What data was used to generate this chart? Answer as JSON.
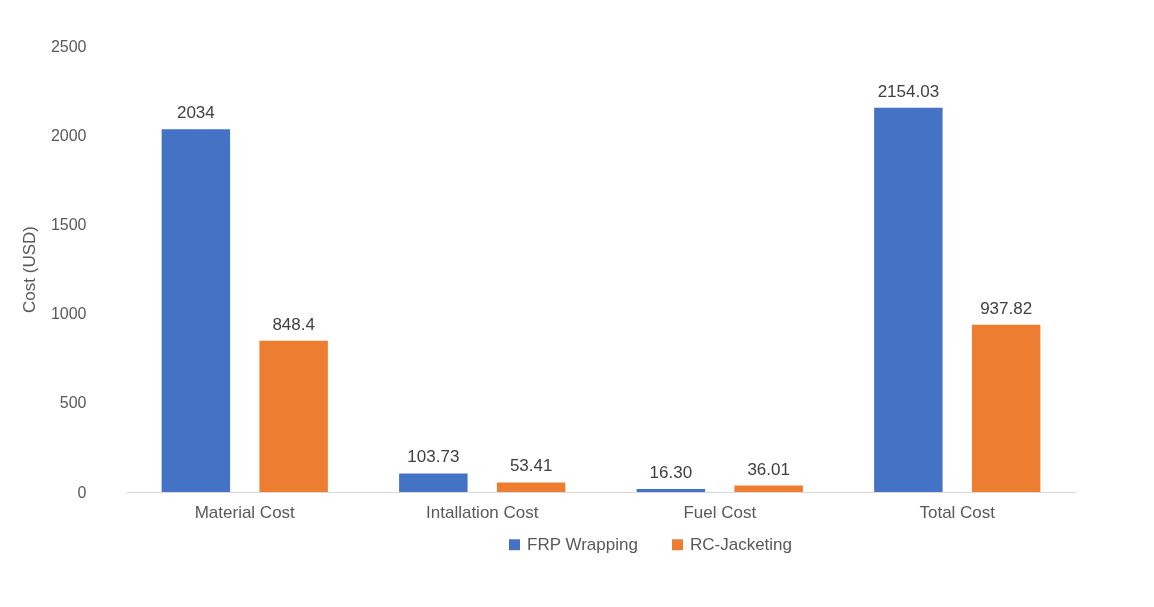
{
  "chart_data": {
    "type": "bar",
    "ylabel": "Cost (USD)",
    "categories": [
      "Material Cost",
      "Intallation Cost",
      "Fuel Cost",
      "Total Cost"
    ],
    "series": [
      {
        "name": "FRP Wrapping",
        "color": "#4472c4",
        "values": [
          2034,
          103.73,
          16.3,
          2154.03
        ],
        "value_labels": [
          "2034",
          "103.73",
          "16.30",
          "2154.03"
        ]
      },
      {
        "name": "RC-Jacketing",
        "color": "#ed7d31",
        "values": [
          848.4,
          53.41,
          36.01,
          937.82
        ],
        "value_labels": [
          "848.4",
          "53.41",
          "36.01",
          "937.82"
        ]
      }
    ],
    "ylim": [
      0,
      2500
    ],
    "yticks": [
      0,
      500,
      1000,
      1500,
      2000,
      2500
    ],
    "grid": false,
    "legend": "bottom"
  }
}
